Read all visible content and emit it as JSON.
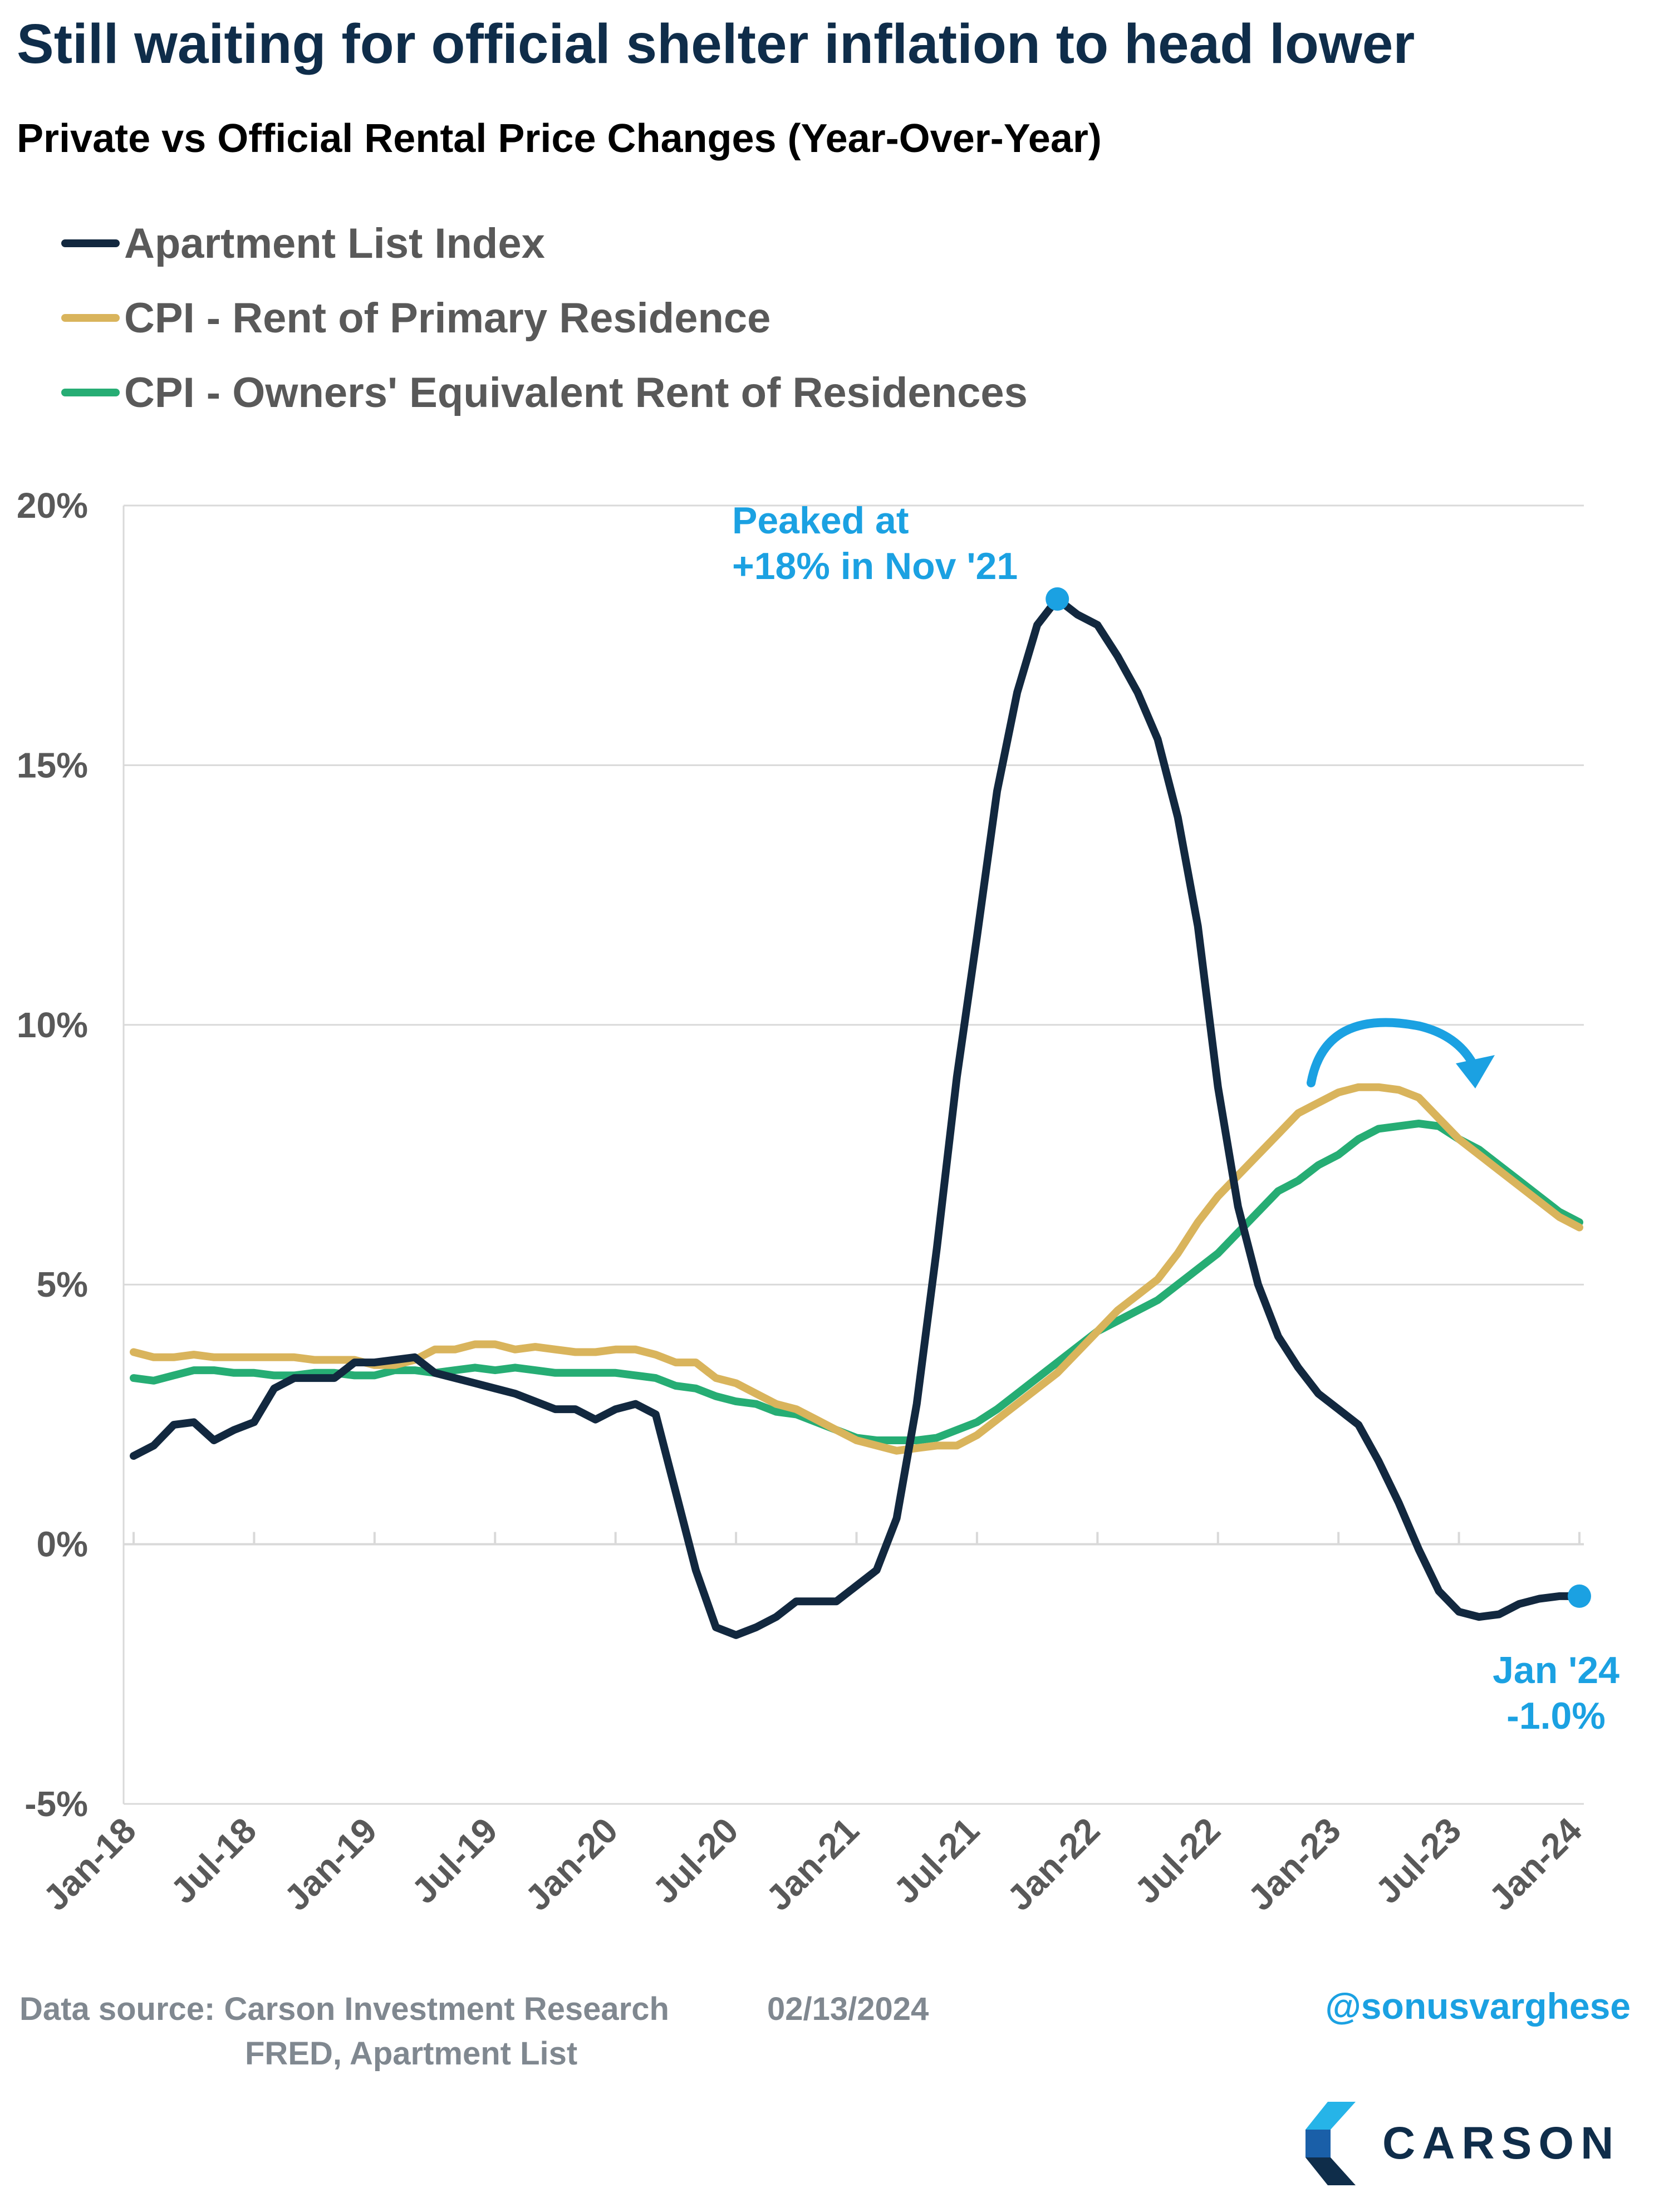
{
  "title": "Still waiting for official shelter inflation to head lower",
  "subtitle": "Private vs Official Rental Price Changes (Year-Over-Year)",
  "colors": {
    "apartment_list": "#12283f",
    "cpi_rent": "#d9b45c",
    "cpi_oer": "#26ad74",
    "annotation": "#1ba1e2",
    "grid": "#d9d9d9",
    "tick_text": "#595959"
  },
  "footer": {
    "source_line1": "Data source: Carson Investment Research",
    "source_line2": "FRED, Apartment List",
    "date": "02/13/2024",
    "handle": "@sonusvarghese",
    "logo_text": "CARSON",
    "logo_icon": "carson-chevron-icon"
  },
  "chart_data": {
    "type": "line",
    "title": "Private vs Official Rental Price Changes (Year-Over-Year)",
    "xlabel": "",
    "ylabel": "",
    "ylim": [
      -5,
      20
    ],
    "y_ticks": [
      -5,
      0,
      5,
      10,
      15,
      20
    ],
    "y_tick_labels": [
      "-5%",
      "0%",
      "5%",
      "10%",
      "15%",
      "20%"
    ],
    "x_tick_labels": [
      "Jan-18",
      "Jul-18",
      "Jan-19",
      "Jul-19",
      "Jan-20",
      "Jul-20",
      "Jan-21",
      "Jul-21",
      "Jan-22",
      "Jul-22",
      "Jan-23",
      "Jul-23",
      "Jan-24"
    ],
    "grid": "horizontal",
    "legend_position": "top-left",
    "x": [
      "Jan-18",
      "Feb-18",
      "Mar-18",
      "Apr-18",
      "May-18",
      "Jun-18",
      "Jul-18",
      "Aug-18",
      "Sep-18",
      "Oct-18",
      "Nov-18",
      "Dec-18",
      "Jan-19",
      "Feb-19",
      "Mar-19",
      "Apr-19",
      "May-19",
      "Jun-19",
      "Jul-19",
      "Aug-19",
      "Sep-19",
      "Oct-19",
      "Nov-19",
      "Dec-19",
      "Jan-20",
      "Feb-20",
      "Mar-20",
      "Apr-20",
      "May-20",
      "Jun-20",
      "Jul-20",
      "Aug-20",
      "Sep-20",
      "Oct-20",
      "Nov-20",
      "Dec-20",
      "Jan-21",
      "Feb-21",
      "Mar-21",
      "Apr-21",
      "May-21",
      "Jun-21",
      "Jul-21",
      "Aug-21",
      "Sep-21",
      "Oct-21",
      "Nov-21",
      "Dec-21",
      "Jan-22",
      "Feb-22",
      "Mar-22",
      "Apr-22",
      "May-22",
      "Jun-22",
      "Jul-22",
      "Aug-22",
      "Sep-22",
      "Oct-22",
      "Nov-22",
      "Dec-22",
      "Jan-23",
      "Feb-23",
      "Mar-23",
      "Apr-23",
      "May-23",
      "Jun-23",
      "Jul-23",
      "Aug-23",
      "Sep-23",
      "Oct-23",
      "Nov-23",
      "Dec-23",
      "Jan-24"
    ],
    "series": [
      {
        "name": "Apartment List Index",
        "values": [
          1.7,
          1.9,
          2.3,
          2.35,
          2.0,
          2.2,
          2.35,
          3.0,
          3.2,
          3.2,
          3.2,
          3.5,
          3.5,
          3.55,
          3.6,
          3.3,
          3.2,
          3.1,
          3.0,
          2.9,
          2.75,
          2.6,
          2.6,
          2.4,
          2.6,
          2.7,
          2.5,
          1.0,
          -0.5,
          -1.6,
          -1.75,
          -1.6,
          -1.4,
          -1.1,
          -1.1,
          -1.1,
          -0.8,
          -0.5,
          0.5,
          2.7,
          5.7,
          9.0,
          11.7,
          14.5,
          16.4,
          17.7,
          18.2,
          17.9,
          17.7,
          17.1,
          16.4,
          15.5,
          14.0,
          11.9,
          8.8,
          6.5,
          5.0,
          4.0,
          3.4,
          2.9,
          2.6,
          2.3,
          1.6,
          0.8,
          -0.1,
          -0.9,
          -1.3,
          -1.4,
          -1.35,
          -1.15,
          -1.05,
          -1.0,
          -1.0
        ]
      },
      {
        "name": "CPI - Rent of Primary Residence",
        "values": [
          3.7,
          3.6,
          3.6,
          3.65,
          3.6,
          3.6,
          3.6,
          3.6,
          3.6,
          3.55,
          3.55,
          3.55,
          3.45,
          3.45,
          3.55,
          3.75,
          3.75,
          3.85,
          3.85,
          3.75,
          3.8,
          3.75,
          3.7,
          3.7,
          3.75,
          3.75,
          3.65,
          3.5,
          3.5,
          3.2,
          3.1,
          2.9,
          2.7,
          2.6,
          2.4,
          2.2,
          2.0,
          1.9,
          1.8,
          1.85,
          1.9,
          1.9,
          2.1,
          2.4,
          2.7,
          3.0,
          3.3,
          3.7,
          4.1,
          4.5,
          4.8,
          5.1,
          5.6,
          6.2,
          6.7,
          7.1,
          7.5,
          7.9,
          8.3,
          8.5,
          8.7,
          8.8,
          8.8,
          8.75,
          8.6,
          8.2,
          7.8,
          7.5,
          7.2,
          6.9,
          6.6,
          6.3,
          6.1
        ]
      },
      {
        "name": "CPI - Owners' Equivalent Rent of Residences",
        "values": [
          3.2,
          3.15,
          3.25,
          3.35,
          3.35,
          3.3,
          3.3,
          3.25,
          3.25,
          3.3,
          3.3,
          3.25,
          3.25,
          3.35,
          3.35,
          3.3,
          3.35,
          3.4,
          3.35,
          3.4,
          3.35,
          3.3,
          3.3,
          3.3,
          3.3,
          3.25,
          3.2,
          3.05,
          3.0,
          2.85,
          2.75,
          2.7,
          2.55,
          2.5,
          2.35,
          2.2,
          2.05,
          2.0,
          2.0,
          2.0,
          2.05,
          2.2,
          2.35,
          2.6,
          2.9,
          3.2,
          3.5,
          3.8,
          4.1,
          4.3,
          4.5,
          4.7,
          5.0,
          5.3,
          5.6,
          6.0,
          6.4,
          6.8,
          7.0,
          7.3,
          7.5,
          7.8,
          8.0,
          8.05,
          8.1,
          8.05,
          7.8,
          7.6,
          7.3,
          7.0,
          6.7,
          6.4,
          6.2
        ]
      }
    ],
    "annotations": [
      {
        "label": "peak",
        "text_line1": "Peaked at",
        "text_line2": "+18% in Nov '21",
        "series": "Apartment List Index",
        "x": "Nov-21",
        "y": 18.2
      },
      {
        "label": "latest",
        "text_line1": "Jan '24",
        "text_line2": "-1.0%",
        "series": "Apartment List Index",
        "x": "Jan-24",
        "y": -1.0
      }
    ]
  }
}
